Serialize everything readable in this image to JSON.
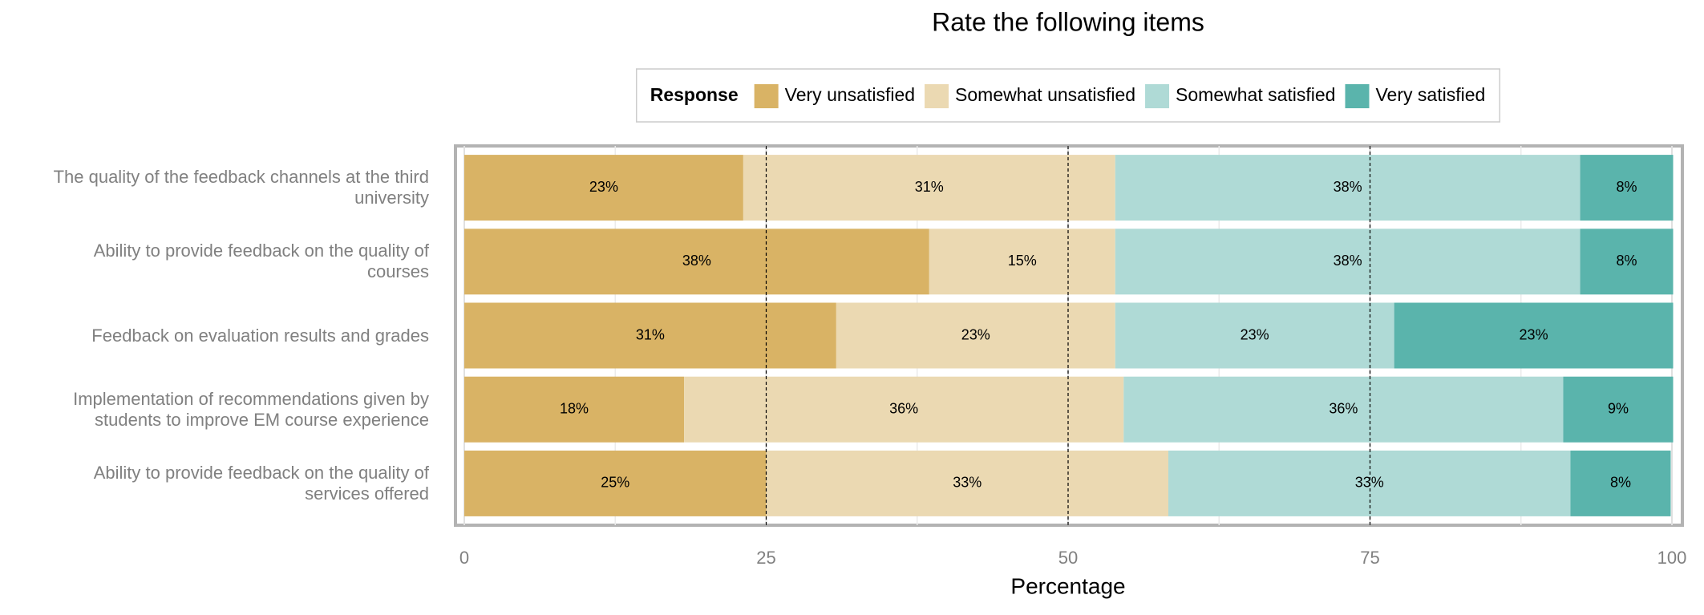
{
  "chart_data": {
    "type": "stacked-barh",
    "title": "Rate the following items",
    "xlabel": "Percentage",
    "legend_title": "Response",
    "legend_position": "top",
    "categories": [
      "The quality of the feedback channels at the third university",
      "Ability to provide feedback on the quality of courses",
      "Feedback on evaluation results and grades",
      "Implementation of recommendations given by students to improve EM course experience",
      "Ability to provide feedback on the quality of services offered"
    ],
    "series": [
      {
        "name": "Very unsatisfied",
        "color": "#d9b365",
        "values": [
          23.1,
          38.5,
          30.8,
          18.2,
          25.0
        ],
        "value_labels": [
          "23%",
          "38%",
          "31%",
          "18%",
          "25%"
        ]
      },
      {
        "name": "Somewhat unsatisfied",
        "color": "#ebd9b2",
        "values": [
          30.8,
          15.4,
          23.1,
          36.4,
          33.3
        ],
        "value_labels": [
          "31%",
          "15%",
          "23%",
          "36%",
          "33%"
        ]
      },
      {
        "name": "Somewhat satisfied",
        "color": "#afdad6",
        "values": [
          38.5,
          38.5,
          23.1,
          36.4,
          33.3
        ],
        "value_labels": [
          "38%",
          "38%",
          "23%",
          "36%",
          "33%"
        ]
      },
      {
        "name": "Very satisfied",
        "color": "#5ab4ac",
        "values": [
          7.7,
          7.7,
          23.1,
          9.1,
          8.3
        ],
        "value_labels": [
          "8%",
          "8%",
          "23%",
          "9%",
          "8%"
        ]
      }
    ],
    "xlim": [
      0,
      100
    ],
    "xticks": [
      0,
      25,
      50,
      75,
      100
    ],
    "reference_lines": [
      25,
      50,
      75
    ],
    "grid": true
  }
}
